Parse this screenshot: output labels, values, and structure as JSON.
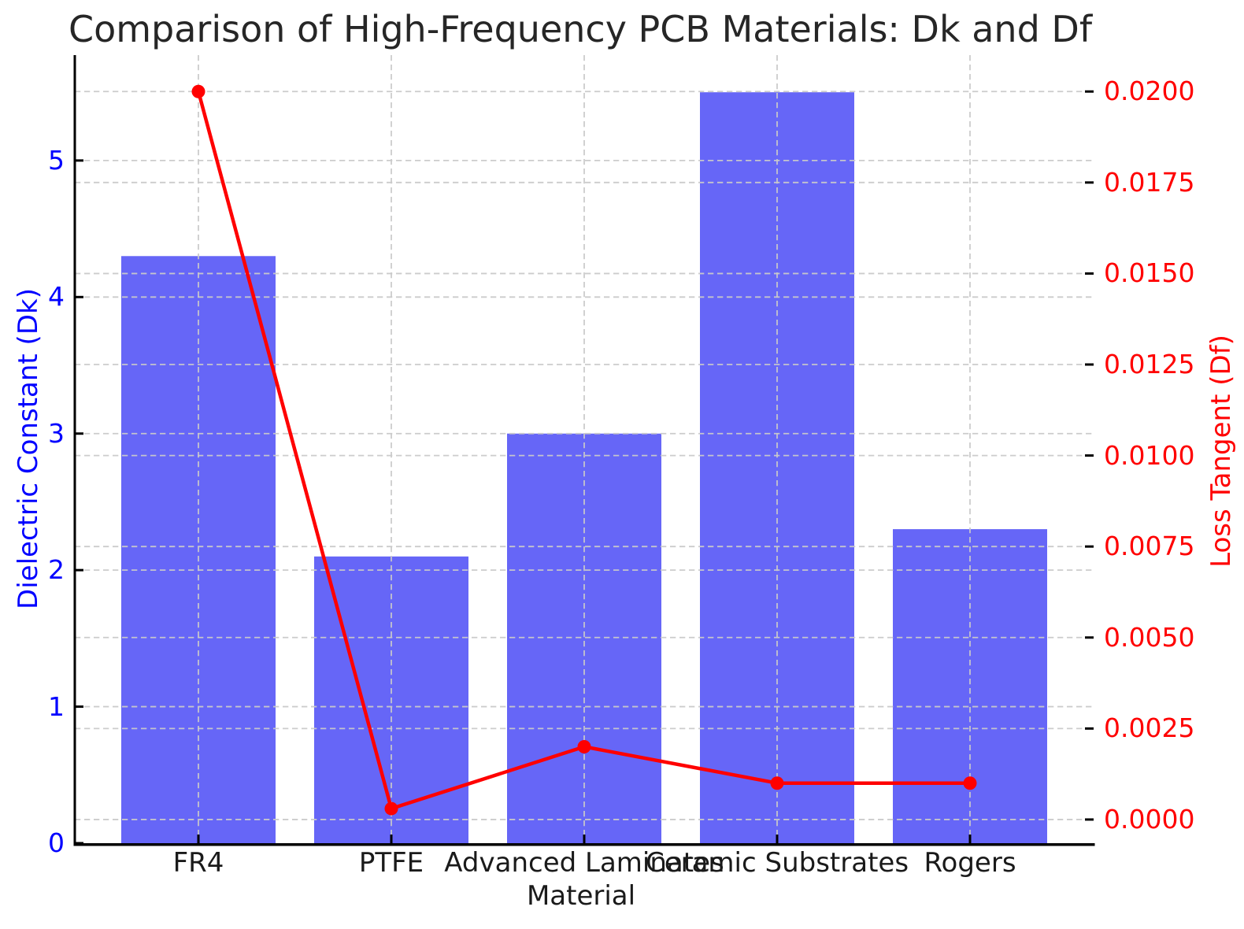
{
  "chart_data": {
    "type": "bar",
    "title": "Comparison of High-Frequency PCB Materials: Dk and Df",
    "xlabel": "Material",
    "categories": [
      "FR4",
      "PTFE",
      "Advanced Laminates",
      "Ceramic Substrates",
      "Rogers"
    ],
    "series": [
      {
        "name": "Dielectric Constant (Dk)",
        "type": "bar",
        "axis": "left",
        "color": "#6666f7",
        "values": [
          4.3,
          2.1,
          3.0,
          5.5,
          2.3
        ]
      },
      {
        "name": "Loss Tangent (Df)",
        "type": "line",
        "axis": "right",
        "color": "#ff0000",
        "marker": "circle",
        "values": [
          0.02,
          0.0003,
          0.002,
          0.001,
          0.001
        ]
      }
    ],
    "left_axis": {
      "label": "Dielectric Constant (Dk)",
      "color": "#0000ff",
      "tick_values": [
        0,
        1,
        2,
        3,
        4,
        5
      ],
      "tick_labels": [
        "0",
        "1",
        "2",
        "3",
        "4",
        "5"
      ],
      "range": [
        0,
        5.772
      ]
    },
    "right_axis": {
      "label": "Loss Tangent (Df)",
      "color": "#ff0000",
      "tick_values": [
        0,
        0.0025,
        0.005,
        0.0075,
        0.01,
        0.0125,
        0.015,
        0.0175,
        0.02
      ],
      "tick_labels": [
        "0.0000",
        "0.0025",
        "0.0050",
        "0.0075",
        "0.0100",
        "0.0125",
        "0.0150",
        "0.0175",
        "0.0200"
      ],
      "range": [
        -0.00065,
        0.021
      ]
    },
    "grid": {
      "show": true,
      "color": "#c9c9c9",
      "style": "dashed"
    },
    "legend": null,
    "text_color": "#1a1a1a"
  }
}
